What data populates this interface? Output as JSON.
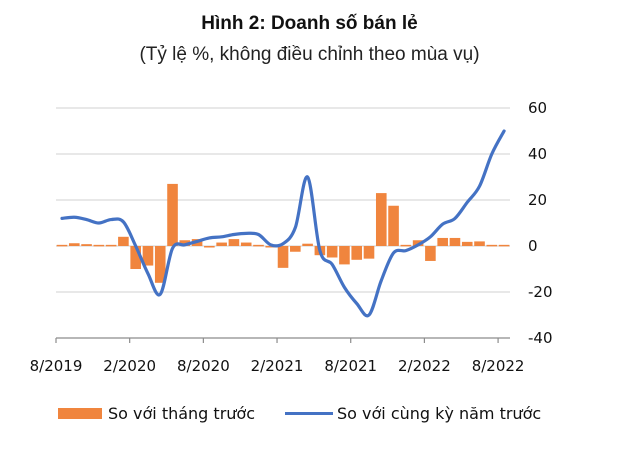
{
  "title": "Hình 2: Doanh số bán lẻ",
  "subtitle": "(Tỷ lệ %, không điều chỉnh theo mùa vụ)",
  "legend": {
    "bar_label": "So với tháng trước",
    "line_label": "So với cùng kỳ năm trước"
  },
  "colors": {
    "bar": "#F0853E",
    "line": "#4472C4",
    "grid": "#D9D9D9",
    "axis": "#8C8C8C"
  },
  "chart_data": {
    "type": "bar+line",
    "title": "Hình 2: Doanh số bán lẻ",
    "subtitle": "(Tỷ lệ %, không điều chỉnh theo mùa vụ)",
    "xlabel": "",
    "ylabel": "",
    "ylim": [
      -40,
      60
    ],
    "yticks": [
      60,
      40,
      20,
      0,
      -20,
      -40
    ],
    "y_axis_position": "right",
    "grid": true,
    "legend_position": "bottom",
    "xtick_labels": [
      "8/2019",
      "2/2020",
      "8/2020",
      "2/2021",
      "8/2021",
      "2/2022",
      "8/2022"
    ],
    "categories": [
      "8/2019",
      "9/2019",
      "10/2019",
      "11/2019",
      "12/2019",
      "1/2020",
      "2/2020",
      "3/2020",
      "4/2020",
      "5/2020",
      "6/2020",
      "7/2020",
      "8/2020",
      "9/2020",
      "10/2020",
      "11/2020",
      "12/2020",
      "1/2021",
      "2/2021",
      "3/2021",
      "4/2021",
      "5/2021",
      "6/2021",
      "7/2021",
      "8/2021",
      "9/2021",
      "10/2021",
      "11/2021",
      "12/2021",
      "1/2022",
      "2/2022",
      "3/2022",
      "4/2022",
      "5/2022",
      "6/2022",
      "7/2022",
      "8/2022"
    ],
    "series": [
      {
        "name": "So với tháng trước",
        "type": "bar",
        "values": [
          0.5,
          1.2,
          0.8,
          0.5,
          0.5,
          4,
          -10,
          -8.5,
          -16,
          27,
          2.5,
          3,
          -0.5,
          1.5,
          3,
          1.5,
          0.5,
          -0.5,
          -9.5,
          -2.5,
          1,
          -4,
          -5,
          -8,
          -6,
          -5.5,
          23,
          17.5,
          0.5,
          2.5,
          -6.5,
          3.5,
          3.5,
          1.8,
          2,
          0.5,
          0.5
        ]
      },
      {
        "name": "So với cùng kỳ năm trước",
        "type": "line",
        "values": [
          12,
          12.5,
          11.5,
          10,
          11.5,
          10.5,
          0,
          -12,
          -21,
          -1,
          0.5,
          2,
          3.5,
          4,
          5,
          5.5,
          5,
          0.5,
          1,
          8,
          30,
          -2,
          -8,
          -18,
          -25,
          -30,
          -15,
          -3,
          -2,
          0.5,
          4,
          9.5,
          12,
          19,
          26,
          40,
          50
        ]
      }
    ]
  }
}
